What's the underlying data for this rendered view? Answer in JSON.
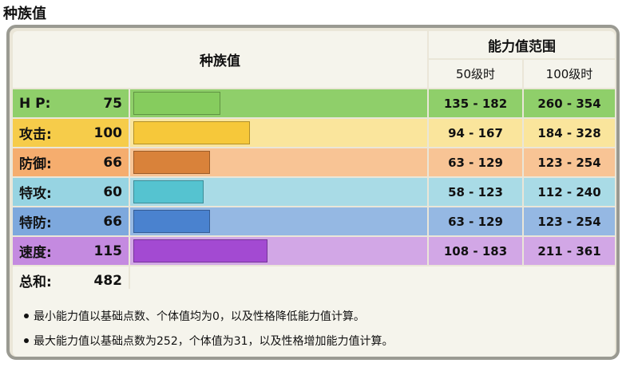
{
  "page_title": "种族值",
  "table": {
    "header_stat": "种族值",
    "header_range": "能力值范围",
    "header_lv50": "50级时",
    "header_lv100": "100级时"
  },
  "max_stat_scale": 255,
  "stats": [
    {
      "label": "H P:",
      "value": "75",
      "range50": "135 - 182",
      "range100": "260 - 354",
      "row_color": "#8fcf6a",
      "light_color": "#8fcf6a",
      "bar_color": "#86cc5e"
    },
    {
      "label": "攻击:",
      "value": "100",
      "range50": "94 - 167",
      "range100": "184 - 328",
      "row_color": "#f6cc4a",
      "light_color": "#fae59c",
      "bar_color": "#f6c83a"
    },
    {
      "label": "防御:",
      "value": "66",
      "range50": "63 - 129",
      "range100": "123 - 254",
      "row_color": "#f5ad6e",
      "light_color": "#f8c495",
      "bar_color": "#d9823a"
    },
    {
      "label": "特攻:",
      "value": "60",
      "range50": "58 - 123",
      "range100": "112 - 240",
      "row_color": "#97d4e2",
      "light_color": "#a9dbe6",
      "bar_color": "#55c3d0"
    },
    {
      "label": "特防:",
      "value": "66",
      "range50": "63 - 129",
      "range100": "123 - 254",
      "row_color": "#7da8dd",
      "light_color": "#95b8e3",
      "bar_color": "#4a82cf"
    },
    {
      "label": "速度:",
      "value": "115",
      "range50": "108 - 183",
      "range100": "211 - 361",
      "row_color": "#c48ae0",
      "light_color": "#d2a7e6",
      "bar_color": "#a34ad2"
    }
  ],
  "total": {
    "label": "总和:",
    "value": "482"
  },
  "notes": [
    "最小能力值以基础点数、个体值均为0，以及性格降低能力值计算。",
    "最大能力值以基础点数为252，个体值为31，以及性格增加能力值计算。"
  ]
}
